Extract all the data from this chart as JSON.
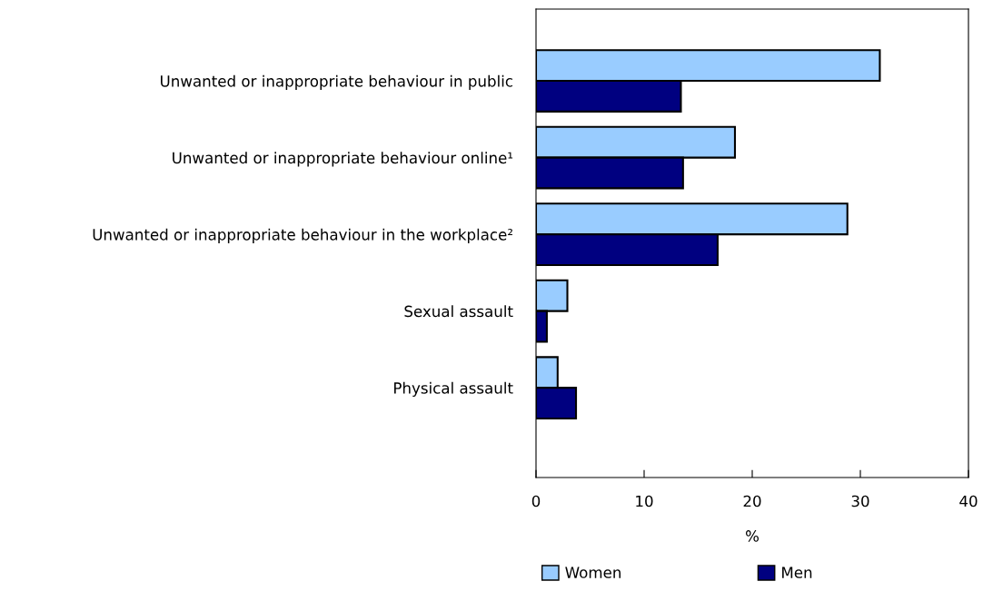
{
  "chart_data": {
    "type": "bar",
    "orientation": "horizontal",
    "xlabel": "%",
    "categories": [
      "Unwanted or inappropriate behaviour in public",
      "Unwanted or inappropriate behaviour online¹",
      "Unwanted or inappropriate behaviour in the workplace²",
      "Sexual assault",
      "Physical assault"
    ],
    "series": [
      {
        "name": "Women",
        "color": "#99ccff",
        "values": [
          31.8,
          18.4,
          28.8,
          2.9,
          2.0
        ]
      },
      {
        "name": "Men",
        "color": "#000080",
        "values": [
          13.4,
          13.6,
          16.8,
          1.0,
          3.7
        ]
      }
    ],
    "xlim": [
      0,
      40
    ],
    "xticks": [
      0,
      10,
      20,
      30,
      40
    ],
    "grid": false,
    "legend": "bottom"
  }
}
